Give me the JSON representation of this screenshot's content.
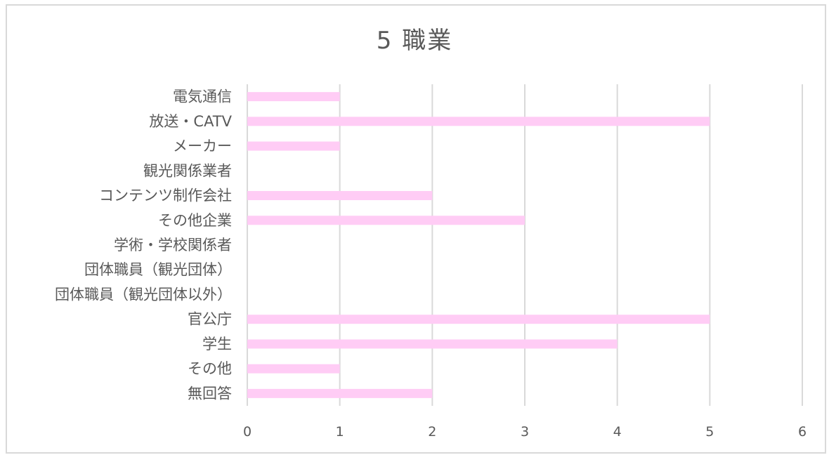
{
  "chart_data": {
    "type": "bar",
    "orientation": "horizontal",
    "title": "5 職業",
    "categories": [
      "電気通信",
      "放送・CATV",
      "メーカー",
      "観光関係業者",
      "コンテンツ制作会社",
      "その他企業",
      "学術・学校関係者",
      "団体職員（観光団体）",
      "団体職員（観光団体以外）",
      "官公庁",
      "学生",
      "その他",
      "無回答"
    ],
    "values": [
      1,
      5,
      1,
      0,
      2,
      3,
      0,
      0,
      0,
      5,
      4,
      1,
      2
    ],
    "xlim": [
      0,
      6
    ],
    "xticks": [
      "0",
      "1",
      "2",
      "3",
      "4",
      "5",
      "6"
    ],
    "grid": true,
    "bar_color": "#ffccf5",
    "legend": "none"
  }
}
